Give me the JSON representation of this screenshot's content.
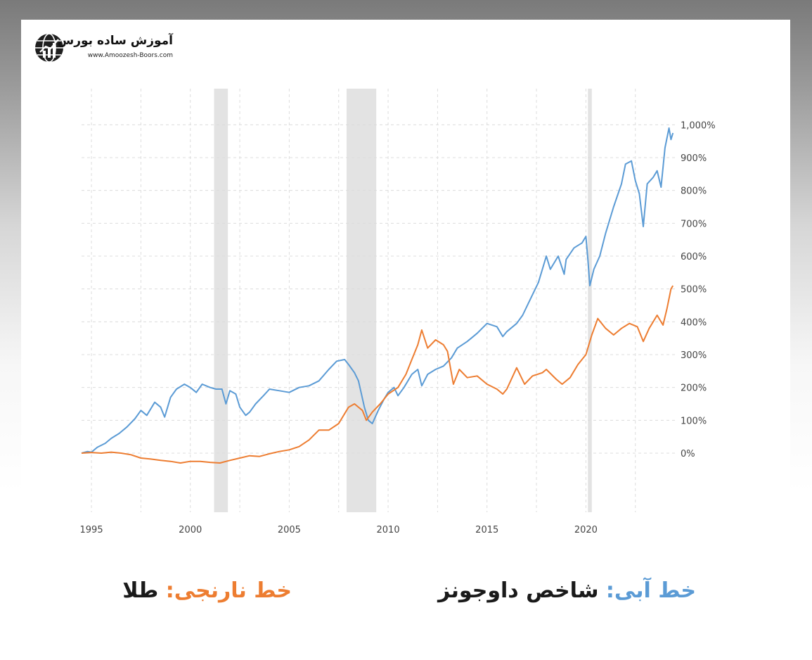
{
  "brand": {
    "title": "آموزش ساده بورس",
    "url": "www.Amoozesh-Boors.com",
    "icon": "globe-chart-icon"
  },
  "legend": {
    "blue_prefix": "خط آبی:",
    "blue_label": "شاخص داوجونز",
    "orange_prefix": "خط نارنجی:",
    "orange_label": "طلا"
  },
  "colors": {
    "blue": "#5b9bd5",
    "orange": "#ed7d31",
    "recession": "#e3e3e3",
    "grid": "#dcdcdc"
  },
  "chart_data": {
    "type": "line",
    "title": "",
    "xlabel": "",
    "ylabel": "",
    "xlim": [
      1994.5,
      2024.5
    ],
    "ylim": [
      -180,
      1110
    ],
    "x_ticks": [
      1995,
      2000,
      2005,
      2010,
      2015,
      2020
    ],
    "y_ticks": [
      0,
      100,
      200,
      300,
      400,
      500,
      600,
      700,
      800,
      900,
      1000
    ],
    "y_tick_labels": [
      "0%",
      "100%",
      "200%",
      "300%",
      "400%",
      "500%",
      "600%",
      "700%",
      "800%",
      "900%",
      "1,000%"
    ],
    "y_axis_side": "right",
    "grid": true,
    "recession_bands": [
      [
        2001.2,
        2001.9
      ],
      [
        2007.9,
        2009.4
      ],
      [
        2020.1,
        2020.3
      ]
    ],
    "series": [
      {
        "color": "#5b9bd5",
        "points": [
          [
            1994.5,
            0
          ],
          [
            1994.8,
            5
          ],
          [
            1995.0,
            3
          ],
          [
            1995.3,
            18
          ],
          [
            1995.7,
            30
          ],
          [
            1996.0,
            45
          ],
          [
            1996.4,
            60
          ],
          [
            1996.8,
            80
          ],
          [
            1997.2,
            105
          ],
          [
            1997.5,
            130
          ],
          [
            1997.8,
            115
          ],
          [
            1998.2,
            155
          ],
          [
            1998.5,
            140
          ],
          [
            1998.7,
            110
          ],
          [
            1999.0,
            170
          ],
          [
            1999.3,
            195
          ],
          [
            1999.7,
            210
          ],
          [
            2000.0,
            200
          ],
          [
            2000.3,
            185
          ],
          [
            2000.6,
            210
          ],
          [
            2001.0,
            200
          ],
          [
            2001.3,
            195
          ],
          [
            2001.6,
            195
          ],
          [
            2001.8,
            150
          ],
          [
            2002.0,
            190
          ],
          [
            2002.3,
            180
          ],
          [
            2002.5,
            140
          ],
          [
            2002.8,
            115
          ],
          [
            2003.0,
            125
          ],
          [
            2003.3,
            150
          ],
          [
            2003.7,
            175
          ],
          [
            2004.0,
            195
          ],
          [
            2004.5,
            190
          ],
          [
            2005.0,
            185
          ],
          [
            2005.5,
            200
          ],
          [
            2006.0,
            205
          ],
          [
            2006.5,
            220
          ],
          [
            2007.0,
            255
          ],
          [
            2007.4,
            280
          ],
          [
            2007.8,
            285
          ],
          [
            2008.0,
            270
          ],
          [
            2008.3,
            245
          ],
          [
            2008.5,
            220
          ],
          [
            2008.8,
            140
          ],
          [
            2009.0,
            100
          ],
          [
            2009.2,
            90
          ],
          [
            2009.5,
            130
          ],
          [
            2009.8,
            165
          ],
          [
            2010.0,
            185
          ],
          [
            2010.3,
            200
          ],
          [
            2010.5,
            175
          ],
          [
            2010.8,
            200
          ],
          [
            2011.2,
            240
          ],
          [
            2011.5,
            255
          ],
          [
            2011.7,
            205
          ],
          [
            2012.0,
            240
          ],
          [
            2012.4,
            255
          ],
          [
            2012.8,
            265
          ],
          [
            2013.2,
            290
          ],
          [
            2013.5,
            320
          ],
          [
            2014.0,
            340
          ],
          [
            2014.5,
            365
          ],
          [
            2015.0,
            395
          ],
          [
            2015.5,
            385
          ],
          [
            2015.8,
            355
          ],
          [
            2016.0,
            370
          ],
          [
            2016.5,
            395
          ],
          [
            2016.8,
            420
          ],
          [
            2017.2,
            470
          ],
          [
            2017.6,
            520
          ],
          [
            2018.0,
            600
          ],
          [
            2018.2,
            560
          ],
          [
            2018.6,
            600
          ],
          [
            2018.9,
            545
          ],
          [
            2019.0,
            590
          ],
          [
            2019.4,
            625
          ],
          [
            2019.8,
            640
          ],
          [
            2020.0,
            660
          ],
          [
            2020.1,
            590
          ],
          [
            2020.2,
            510
          ],
          [
            2020.4,
            560
          ],
          [
            2020.7,
            600
          ],
          [
            2021.0,
            670
          ],
          [
            2021.4,
            750
          ],
          [
            2021.8,
            820
          ],
          [
            2022.0,
            880
          ],
          [
            2022.3,
            890
          ],
          [
            2022.5,
            830
          ],
          [
            2022.7,
            790
          ],
          [
            2022.9,
            690
          ],
          [
            2023.1,
            820
          ],
          [
            2023.4,
            840
          ],
          [
            2023.6,
            860
          ],
          [
            2023.8,
            810
          ],
          [
            2024.0,
            930
          ],
          [
            2024.2,
            990
          ],
          [
            2024.3,
            955
          ],
          [
            2024.4,
            975
          ]
        ]
      },
      {
        "color": "#ed7d31",
        "points": [
          [
            1994.5,
            0
          ],
          [
            1995.0,
            2
          ],
          [
            1995.5,
            0
          ],
          [
            1996.0,
            3
          ],
          [
            1996.5,
            0
          ],
          [
            1997.0,
            -5
          ],
          [
            1997.5,
            -15
          ],
          [
            1998.0,
            -18
          ],
          [
            1998.5,
            -22
          ],
          [
            1999.0,
            -25
          ],
          [
            1999.5,
            -30
          ],
          [
            2000.0,
            -25
          ],
          [
            2000.5,
            -25
          ],
          [
            2001.0,
            -28
          ],
          [
            2001.5,
            -30
          ],
          [
            2002.0,
            -22
          ],
          [
            2002.5,
            -15
          ],
          [
            2003.0,
            -8
          ],
          [
            2003.5,
            -10
          ],
          [
            2004.0,
            -2
          ],
          [
            2004.5,
            5
          ],
          [
            2005.0,
            10
          ],
          [
            2005.5,
            20
          ],
          [
            2006.0,
            40
          ],
          [
            2006.5,
            70
          ],
          [
            2007.0,
            70
          ],
          [
            2007.5,
            90
          ],
          [
            2008.0,
            140
          ],
          [
            2008.3,
            150
          ],
          [
            2008.7,
            130
          ],
          [
            2008.9,
            100
          ],
          [
            2009.2,
            125
          ],
          [
            2009.6,
            150
          ],
          [
            2010.0,
            180
          ],
          [
            2010.5,
            200
          ],
          [
            2010.9,
            240
          ],
          [
            2011.2,
            285
          ],
          [
            2011.5,
            330
          ],
          [
            2011.7,
            375
          ],
          [
            2012.0,
            320
          ],
          [
            2012.4,
            345
          ],
          [
            2012.8,
            330
          ],
          [
            2013.0,
            310
          ],
          [
            2013.3,
            210
          ],
          [
            2013.6,
            255
          ],
          [
            2014.0,
            230
          ],
          [
            2014.5,
            235
          ],
          [
            2015.0,
            210
          ],
          [
            2015.5,
            195
          ],
          [
            2015.8,
            180
          ],
          [
            2016.0,
            195
          ],
          [
            2016.5,
            260
          ],
          [
            2016.9,
            210
          ],
          [
            2017.3,
            235
          ],
          [
            2017.8,
            245
          ],
          [
            2018.0,
            255
          ],
          [
            2018.5,
            225
          ],
          [
            2018.8,
            210
          ],
          [
            2019.2,
            230
          ],
          [
            2019.6,
            270
          ],
          [
            2020.0,
            300
          ],
          [
            2020.3,
            360
          ],
          [
            2020.6,
            410
          ],
          [
            2021.0,
            380
          ],
          [
            2021.4,
            360
          ],
          [
            2021.8,
            380
          ],
          [
            2022.2,
            395
          ],
          [
            2022.6,
            385
          ],
          [
            2022.9,
            340
          ],
          [
            2023.2,
            380
          ],
          [
            2023.6,
            420
          ],
          [
            2023.9,
            390
          ],
          [
            2024.1,
            440
          ],
          [
            2024.3,
            500
          ],
          [
            2024.4,
            510
          ]
        ]
      }
    ]
  }
}
